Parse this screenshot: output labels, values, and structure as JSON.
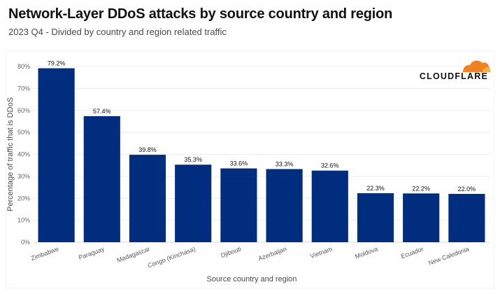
{
  "header": {
    "title": "Network-Layer DDoS attacks by source country and region",
    "subtitle": "2023 Q4 - Divided by country and region related traffic"
  },
  "brand": {
    "name": "CLOUDFLARE",
    "icon": "cloud-icon",
    "color_primary": "#f38020",
    "color_secondary": "#faae40"
  },
  "chart_data": {
    "type": "bar",
    "categories": [
      "Zimbabwe",
      "Paraguay",
      "Madagascar",
      "Congo (Kinchasa)",
      "Djibouti",
      "Azerbaijan",
      "Vietnam",
      "Moldova",
      "Ecuador",
      "New Caledonia"
    ],
    "values": [
      79.2,
      57.4,
      39.8,
      35.3,
      33.6,
      33.3,
      32.6,
      22.3,
      22.2,
      22.0
    ],
    "data_labels": [
      "79.2%",
      "57.4%",
      "39.8%",
      "35.3%",
      "33.6%",
      "33.3%",
      "32.6%",
      "22.3%",
      "22.2%",
      "22.0%"
    ],
    "xlabel": "Source country and region",
    "ylabel": "Percentage of traffic that is DDoS",
    "ylim": [
      0,
      80
    ],
    "yticks": [
      "0%",
      "10%",
      "20%",
      "30%",
      "40%",
      "50%",
      "60%",
      "70%",
      "80%"
    ],
    "ytick_values": [
      0,
      10,
      20,
      30,
      40,
      50,
      60,
      70,
      80
    ],
    "bar_color": "#002d7e",
    "grid": true,
    "legend": "none"
  }
}
